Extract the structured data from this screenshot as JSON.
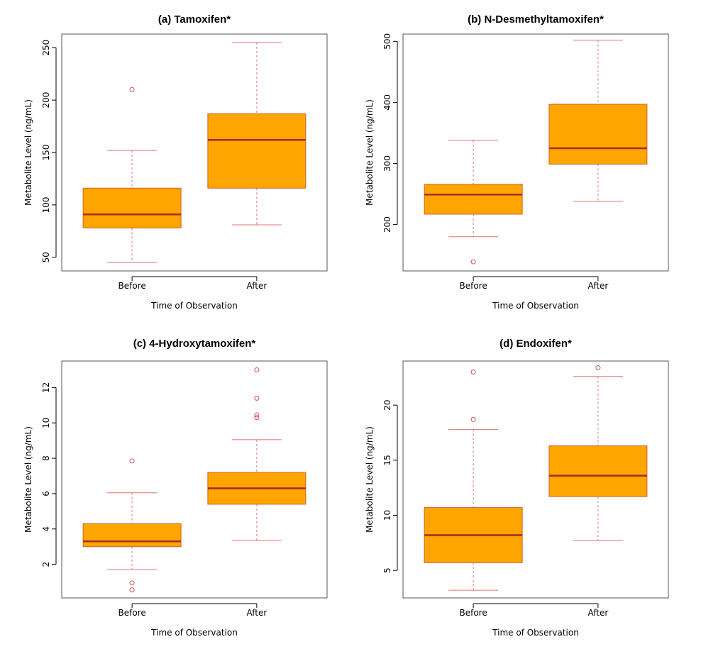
{
  "colors": {
    "box_fill": "#FFA500",
    "box_border": "#C9622A",
    "median": "#A52A2A",
    "whisker": "#E07070",
    "outlier": "#D05050",
    "frame": "#555555"
  },
  "chart_data": [
    {
      "type": "box",
      "title": "(a) Tamoxifen*",
      "xlabel": "Time of Observation",
      "ylabel": "Metabolite Level (ng/mL)",
      "ylim": [
        37,
        263
      ],
      "yticks": [
        50,
        100,
        150,
        200,
        250
      ],
      "categories": [
        "Before",
        "After"
      ],
      "boxes": [
        {
          "label": "Before",
          "whisker_low": 45,
          "q1": 78,
          "median": 91,
          "q3": 116,
          "whisker_high": 152,
          "outliers": [
            210
          ]
        },
        {
          "label": "After",
          "whisker_low": 81,
          "q1": 116,
          "median": 162,
          "q3": 187,
          "whisker_high": 255,
          "outliers": []
        }
      ]
    },
    {
      "type": "box",
      "title": "(b) N-Desmethyltamoxifen*",
      "xlabel": "Time of Observation",
      "ylabel": "Metabolite Level (ng/mL)",
      "ylim": [
        124,
        512
      ],
      "yticks": [
        200,
        300,
        400,
        500
      ],
      "categories": [
        "Before",
        "After"
      ],
      "boxes": [
        {
          "label": "Before",
          "whisker_low": 180,
          "q1": 217,
          "median": 249,
          "q3": 266,
          "whisker_high": 338,
          "outliers": [
            139
          ]
        },
        {
          "label": "After",
          "whisker_low": 238,
          "q1": 299,
          "median": 325,
          "q3": 397,
          "whisker_high": 502,
          "outliers": []
        }
      ]
    },
    {
      "type": "box",
      "title": "(c) 4-Hydroxytamoxifen*",
      "xlabel": "Time of Observation",
      "ylabel": "Metabolite Level (ng/mL)",
      "ylim": [
        0.1,
        13.5
      ],
      "yticks": [
        2,
        4,
        6,
        8,
        10,
        12
      ],
      "categories": [
        "Before",
        "After"
      ],
      "boxes": [
        {
          "label": "Before",
          "whisker_low": 1.7,
          "q1": 3.0,
          "median": 3.3,
          "q3": 4.3,
          "whisker_high": 6.05,
          "outliers": [
            7.85,
            0.95,
            0.55
          ]
        },
        {
          "label": "After",
          "whisker_low": 3.35,
          "q1": 5.4,
          "median": 6.3,
          "q3": 7.2,
          "whisker_high": 9.05,
          "outliers": [
            13.0,
            11.4,
            10.45,
            10.3
          ]
        }
      ]
    },
    {
      "type": "box",
      "title": "(d) Endoxifen*",
      "xlabel": "Time of Observation",
      "ylabel": "Metabolite Level (ng/mL)",
      "ylim": [
        2.5,
        24.0
      ],
      "yticks": [
        5,
        10,
        15,
        20
      ],
      "categories": [
        "Before",
        "After"
      ],
      "boxes": [
        {
          "label": "Before",
          "whisker_low": 3.2,
          "q1": 5.7,
          "median": 8.2,
          "q3": 10.7,
          "whisker_high": 17.8,
          "outliers": [
            23.0,
            18.7
          ]
        },
        {
          "label": "After",
          "whisker_low": 7.7,
          "q1": 11.7,
          "median": 13.6,
          "q3": 16.3,
          "whisker_high": 22.6,
          "outliers": [
            23.4
          ]
        }
      ]
    }
  ]
}
